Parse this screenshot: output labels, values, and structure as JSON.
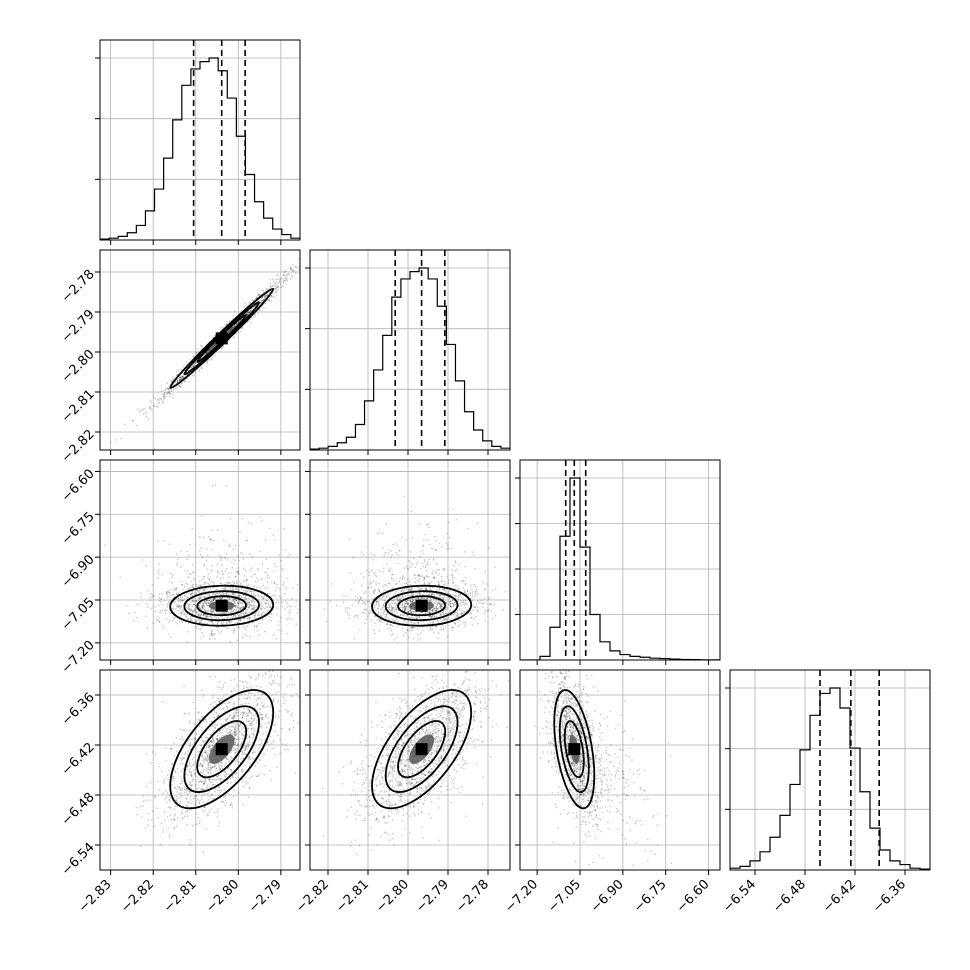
{
  "chart_data": {
    "type": "corner",
    "title": "",
    "grid": true,
    "params": [
      {
        "range": [
          -2.8325,
          -2.7855
        ],
        "ticks": [
          "-2.83",
          "-2.82",
          "-2.81",
          "-2.80",
          "-2.79"
        ],
        "tick_values": [
          -2.83,
          -2.82,
          -2.81,
          -2.8,
          -2.79
        ],
        "quantiles": [
          -2.8105,
          -2.8039,
          -2.7984
        ]
      },
      {
        "range": [
          -2.8245,
          -2.7745
        ],
        "ticks": [
          "-2.82",
          "-2.81",
          "-2.80",
          "-2.79",
          "-2.78"
        ],
        "tick_values": [
          -2.82,
          -2.81,
          -2.8,
          -2.79,
          -2.78
        ],
        "quantiles": [
          -2.8032,
          -2.7966,
          -2.7908
        ]
      },
      {
        "range": [
          -7.26,
          -6.56
        ],
        "ticks": [
          "-7.20",
          "-7.05",
          "-6.90",
          "-6.75",
          "-6.60"
        ],
        "tick_values": [
          -7.2,
          -7.05,
          -6.9,
          -6.75,
          -6.6
        ],
        "quantiles": [
          -7.1,
          -7.07,
          -7.03
        ]
      },
      {
        "range": [
          -6.57,
          -6.33
        ],
        "ticks": [
          "-6.54",
          "-6.48",
          "-6.42",
          "-6.36"
        ],
        "tick_values": [
          -6.54,
          -6.48,
          -6.42,
          -6.36
        ],
        "quantiles": [
          -6.462,
          -6.425,
          -6.391
        ]
      }
    ],
    "histograms": [
      {
        "counts": [
          0.005,
          0.01,
          0.02,
          0.04,
          0.08,
          0.16,
          0.28,
          0.45,
          0.66,
          0.85,
          0.94,
          0.98,
          1.0,
          0.93,
          0.78,
          0.57,
          0.36,
          0.21,
          0.12,
          0.06,
          0.03,
          0.01
        ]
      },
      {
        "counts": [
          0.005,
          0.01,
          0.02,
          0.04,
          0.07,
          0.14,
          0.27,
          0.44,
          0.63,
          0.84,
          0.94,
          0.98,
          1.0,
          0.94,
          0.79,
          0.58,
          0.38,
          0.21,
          0.11,
          0.05,
          0.02,
          0.01
        ]
      },
      {
        "counts": [
          0.0,
          0.0,
          0.02,
          0.18,
          0.68,
          1.0,
          0.62,
          0.25,
          0.1,
          0.05,
          0.03,
          0.02,
          0.015,
          0.01,
          0.008,
          0.005,
          0.003,
          0.002,
          0.001,
          0.001
        ]
      },
      {
        "counts": [
          0.01,
          0.02,
          0.05,
          0.1,
          0.18,
          0.3,
          0.47,
          0.66,
          0.85,
          0.97,
          1.0,
          0.89,
          0.67,
          0.43,
          0.23,
          0.11,
          0.05,
          0.03,
          0.01,
          0.005
        ]
      }
    ],
    "pairs": [
      {
        "row": 1,
        "col": 0,
        "corr": 0.99
      },
      {
        "row": 2,
        "col": 0,
        "corr": 0.05
      },
      {
        "row": 2,
        "col": 1,
        "corr": 0.05
      },
      {
        "row": 3,
        "col": 0,
        "corr": 0.62
      },
      {
        "row": 3,
        "col": 1,
        "corr": 0.62
      },
      {
        "row": 3,
        "col": 2,
        "corr": -0.45
      }
    ],
    "hist_y_ticks": [
      [
        "",
        "",
        "",
        ""
      ],
      [
        "",
        "",
        "",
        ""
      ],
      [
        "",
        "",
        "",
        "",
        ""
      ],
      [
        "",
        "",
        "",
        ""
      ]
    ]
  }
}
